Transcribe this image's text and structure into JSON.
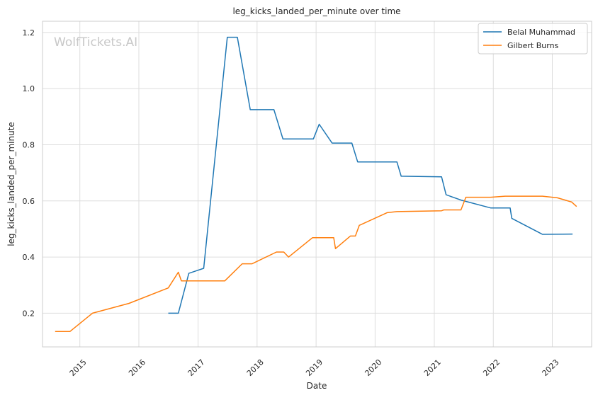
{
  "chart_data": {
    "type": "line",
    "title": "leg_kicks_landed_per_minute over time",
    "xlabel": "Date",
    "ylabel": "leg_kicks_landed_per_minute",
    "watermark": "WolfTickets.AI",
    "x_ticks": [
      "2015",
      "2016",
      "2017",
      "2018",
      "2019",
      "2020",
      "2021",
      "2022",
      "2023"
    ],
    "y_ticks": [
      "0.2",
      "0.4",
      "0.6",
      "0.8",
      "1.0",
      "1.2"
    ],
    "xlim": [
      "2014-05-15",
      "2023-09-01"
    ],
    "ylim": [
      0.08,
      1.24
    ],
    "grid": true,
    "legend_position": "top-right",
    "series": [
      {
        "name": "Belal Muhammad",
        "color": "#1f77b4",
        "points": [
          [
            "2016-07-01",
            0.2
          ],
          [
            "2016-09-01",
            0.2
          ],
          [
            "2016-11-05",
            0.342
          ],
          [
            "2017-02-05",
            0.36
          ],
          [
            "2017-07-01",
            1.183
          ],
          [
            "2017-09-01",
            1.183
          ],
          [
            "2017-11-20",
            0.925
          ],
          [
            "2018-04-15",
            0.925
          ],
          [
            "2018-06-10",
            0.821
          ],
          [
            "2018-12-15",
            0.821
          ],
          [
            "2019-01-20",
            0.873
          ],
          [
            "2019-04-10",
            0.806
          ],
          [
            "2019-08-10",
            0.806
          ],
          [
            "2019-09-15",
            0.739
          ],
          [
            "2020-05-15",
            0.739
          ],
          [
            "2020-06-10",
            0.688
          ],
          [
            "2021-02-15",
            0.686
          ],
          [
            "2021-03-15",
            0.622
          ],
          [
            "2021-06-15",
            0.603
          ],
          [
            "2021-12-15",
            0.575
          ],
          [
            "2022-04-15",
            0.575
          ],
          [
            "2022-04-25",
            0.538
          ],
          [
            "2022-11-01",
            0.481
          ],
          [
            "2023-05-06",
            0.482
          ]
        ]
      },
      {
        "name": "Gilbert Burns",
        "color": "#ff7f0e",
        "points": [
          [
            "2014-08-01",
            0.135
          ],
          [
            "2014-11-01",
            0.135
          ],
          [
            "2015-03-20",
            0.2
          ],
          [
            "2015-11-01",
            0.235
          ],
          [
            "2016-07-01",
            0.29
          ],
          [
            "2016-09-01",
            0.346
          ],
          [
            "2016-09-20",
            0.315
          ],
          [
            "2017-06-15",
            0.315
          ],
          [
            "2017-10-01",
            0.376
          ],
          [
            "2017-12-01",
            0.376
          ],
          [
            "2018-05-01",
            0.418
          ],
          [
            "2018-06-15",
            0.418
          ],
          [
            "2018-07-15",
            0.4
          ],
          [
            "2018-12-10",
            0.469
          ],
          [
            "2019-04-20",
            0.469
          ],
          [
            "2019-05-01",
            0.43
          ],
          [
            "2019-08-01",
            0.475
          ],
          [
            "2019-09-01",
            0.475
          ],
          [
            "2019-09-25",
            0.513
          ],
          [
            "2020-03-15",
            0.558
          ],
          [
            "2020-05-15",
            0.562
          ],
          [
            "2021-02-15",
            0.565
          ],
          [
            "2021-03-01",
            0.568
          ],
          [
            "2021-06-15",
            0.568
          ],
          [
            "2021-07-15",
            0.613
          ],
          [
            "2021-12-15",
            0.613
          ],
          [
            "2022-03-15",
            0.617
          ],
          [
            "2022-11-01",
            0.617
          ],
          [
            "2023-02-01",
            0.611
          ],
          [
            "2023-05-01",
            0.596
          ],
          [
            "2023-05-31",
            0.58
          ]
        ]
      }
    ]
  }
}
